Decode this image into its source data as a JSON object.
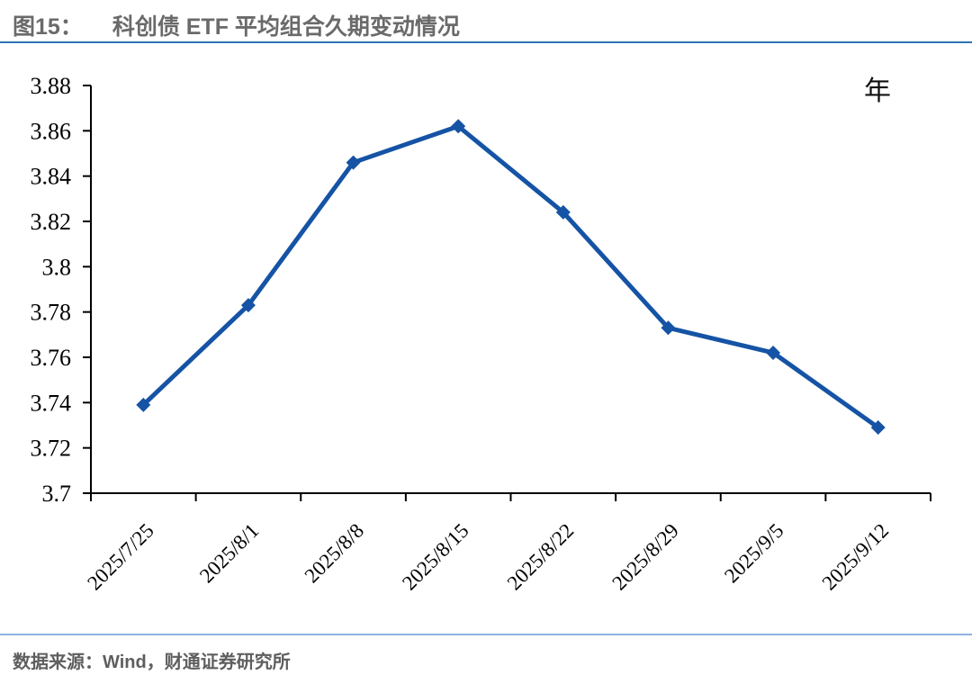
{
  "header": {
    "figure_label": "图15：",
    "title": "科创债 ETF 平均组合久期变动情况"
  },
  "footer": {
    "source": "数据来源：Wind，财通证券研究所"
  },
  "colors": {
    "line": "#1553a5",
    "title_rule": "#2e74b5",
    "footer_rule": "#8fb2de",
    "axis": "#000000",
    "title_text": "#6a6a6a",
    "footer_text": "#5e5e5e"
  },
  "chart_data": {
    "type": "line",
    "title": "科创债 ETF 平均组合久期变动情况",
    "unit_label": "年",
    "categories": [
      "2025/7/25",
      "2025/8/1",
      "2025/8/8",
      "2025/8/15",
      "2025/8/22",
      "2025/8/29",
      "2025/9/5",
      "2025/9/12"
    ],
    "values": [
      3.739,
      3.783,
      3.846,
      3.862,
      3.824,
      3.773,
      3.762,
      3.729
    ],
    "xlabel": "",
    "ylabel": "",
    "ylim": [
      3.7,
      3.88
    ],
    "y_ticks": [
      {
        "label": "3.88",
        "value": 3.88
      },
      {
        "label": "3.86",
        "value": 3.86
      },
      {
        "label": "3.84",
        "value": 3.84
      },
      {
        "label": "3.82",
        "value": 3.82
      },
      {
        "label": "3.8",
        "value": 3.8
      },
      {
        "label": "3.78",
        "value": 3.78
      },
      {
        "label": "3.76",
        "value": 3.76
      },
      {
        "label": "3.74",
        "value": 3.74
      },
      {
        "label": "3.72",
        "value": 3.72
      },
      {
        "label": "3.7",
        "value": 3.7
      }
    ],
    "line_color": "#1553a5",
    "marker": "diamond",
    "grid": false,
    "legend_position": "none",
    "x_label_rotation_deg": -45
  }
}
